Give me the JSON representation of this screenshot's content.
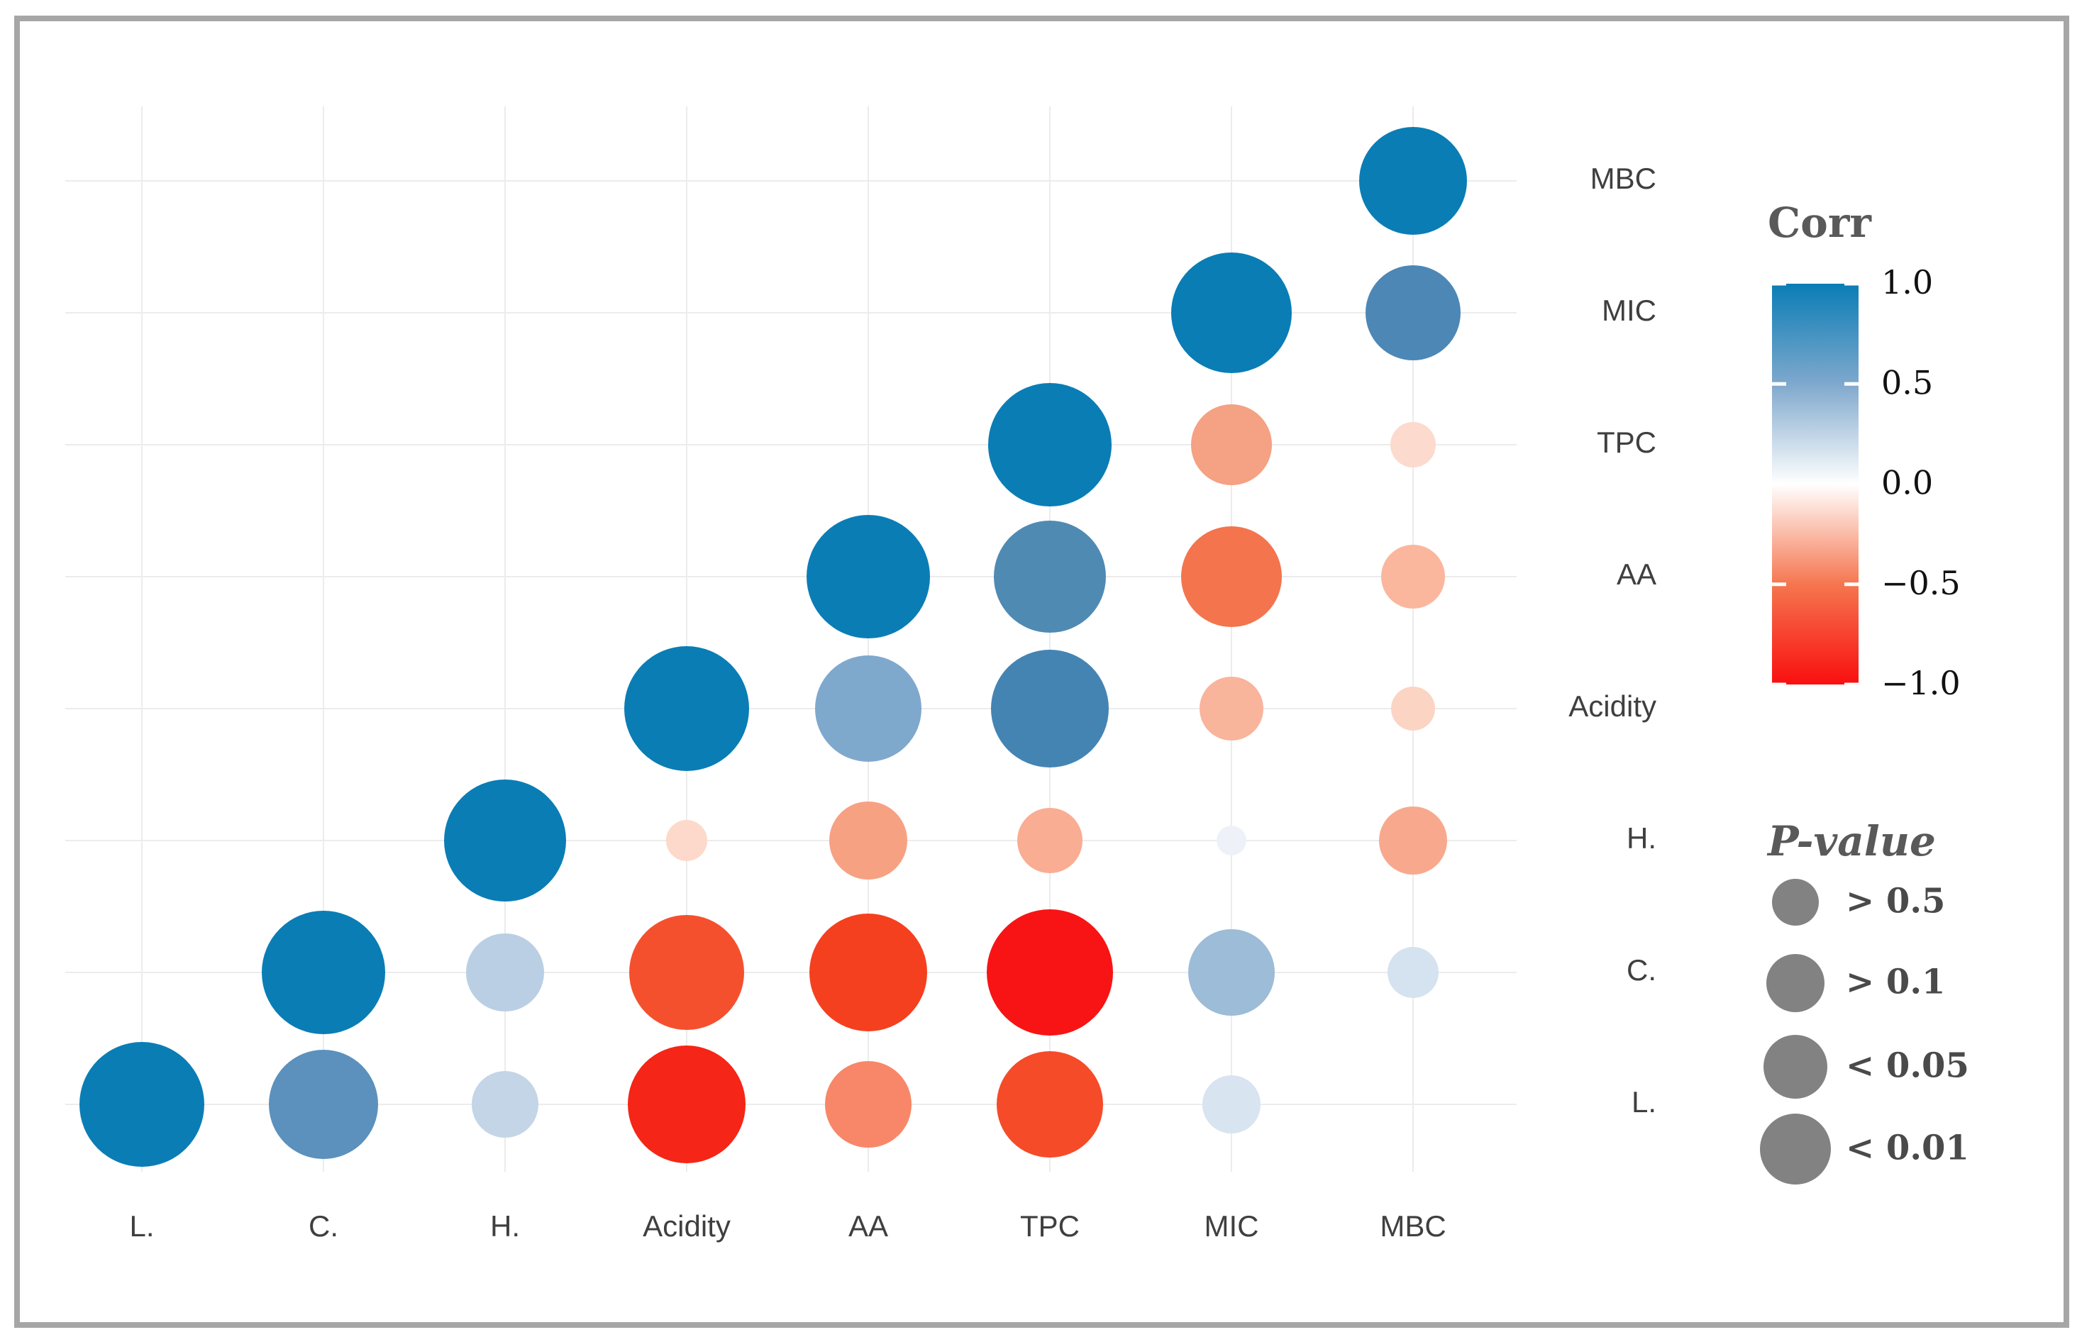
{
  "figure": {
    "background_color": "#ffffff",
    "frame_color": "#a6a6a6"
  },
  "chart_data": {
    "type": "heatmap",
    "subtype": "correlation-bubble-matrix-upper-triangle",
    "title": "",
    "variables": [
      "L.",
      "C.",
      "H.",
      "Acidity",
      "AA",
      "TPC",
      "MIC",
      "MBC"
    ],
    "x_axis_labels": [
      "L.",
      "C.",
      "H.",
      "Acidity",
      "AA",
      "TPC",
      "MIC",
      "MBC"
    ],
    "right_axis_labels_top_to_bottom": [
      "MBC",
      "MIC",
      "TPC",
      "AA",
      "Acidity",
      "H.",
      "C.",
      "L."
    ],
    "grid": true,
    "legend_position": "right",
    "axis_label_color": "#3f3f3f",
    "gridline_color": "#ececec",
    "cells": [
      {
        "row": "L.",
        "col": "L.",
        "corr": 1.0,
        "p": "< 0.01",
        "radius": 88,
        "color": "#0a7db5"
      },
      {
        "row": "C.",
        "col": "C.",
        "corr": 1.0,
        "p": "< 0.01",
        "radius": 87,
        "color": "#0a7db5"
      },
      {
        "row": "H.",
        "col": "H.",
        "corr": 1.0,
        "p": "< 0.01",
        "radius": 86,
        "color": "#0a7db5"
      },
      {
        "row": "Acidity",
        "col": "Acidity",
        "corr": 1.0,
        "p": "< 0.01",
        "radius": 88,
        "color": "#0a7db5"
      },
      {
        "row": "AA",
        "col": "AA",
        "corr": 1.0,
        "p": "< 0.01",
        "radius": 87,
        "color": "#0a7db5"
      },
      {
        "row": "TPC",
        "col": "TPC",
        "corr": 1.0,
        "p": "< 0.01",
        "radius": 87,
        "color": "#0a7db5"
      },
      {
        "row": "MIC",
        "col": "MIC",
        "corr": 1.0,
        "p": "< 0.01",
        "radius": 85,
        "color": "#0a7db5"
      },
      {
        "row": "MBC",
        "col": "MBC",
        "corr": 1.0,
        "p": "< 0.01",
        "radius": 76,
        "color": "#0a7db5"
      },
      {
        "row": "L.",
        "col": "C.",
        "corr": 0.6,
        "p": "< 0.01",
        "radius": 77,
        "color": "#5b91bc"
      },
      {
        "row": "L.",
        "col": "H.",
        "corr": 0.2,
        "p": "> 0.1",
        "radius": 47,
        "color": "#c3d5e7"
      },
      {
        "row": "L.",
        "col": "Acidity",
        "corr": -0.88,
        "p": "< 0.01",
        "radius": 83,
        "color": "#f52517"
      },
      {
        "row": "L.",
        "col": "AA",
        "corr": -0.5,
        "p": "< 0.05",
        "radius": 61,
        "color": "#f78768"
      },
      {
        "row": "L.",
        "col": "TPC",
        "corr": -0.78,
        "p": "< 0.01",
        "radius": 75,
        "color": "#f54b29"
      },
      {
        "row": "L.",
        "col": "MIC",
        "corr": 0.12,
        "p": "> 0.1",
        "radius": 41,
        "color": "#d8e4f0"
      },
      {
        "row": "L.",
        "col": "MBC",
        "corr": 0.0,
        "p": "> 0.5",
        "radius": 0,
        "color": "#ffffff"
      },
      {
        "row": "C.",
        "col": "H.",
        "corr": 0.25,
        "p": "> 0.1",
        "radius": 55,
        "color": "#bacfe4"
      },
      {
        "row": "C.",
        "col": "Acidity",
        "corr": -0.75,
        "p": "< 0.01",
        "radius": 81,
        "color": "#f5502e"
      },
      {
        "row": "C.",
        "col": "AA",
        "corr": -0.8,
        "p": "< 0.01",
        "radius": 83,
        "color": "#f4401f"
      },
      {
        "row": "C.",
        "col": "TPC",
        "corr": -0.95,
        "p": "< 0.01",
        "radius": 89,
        "color": "#f81414"
      },
      {
        "row": "C.",
        "col": "MIC",
        "corr": 0.35,
        "p": "< 0.05",
        "radius": 61,
        "color": "#9cbcd8"
      },
      {
        "row": "C.",
        "col": "MBC",
        "corr": 0.15,
        "p": "> 0.5",
        "radius": 36,
        "color": "#d5e2ef"
      },
      {
        "row": "H.",
        "col": "Acidity",
        "corr": -0.1,
        "p": "> 0.5",
        "radius": 29,
        "color": "#fcd9ca"
      },
      {
        "row": "H.",
        "col": "AA",
        "corr": -0.4,
        "p": "> 0.1",
        "radius": 55,
        "color": "#f7a183"
      },
      {
        "row": "H.",
        "col": "TPC",
        "corr": -0.32,
        "p": "> 0.1",
        "radius": 46,
        "color": "#f9ad92"
      },
      {
        "row": "H.",
        "col": "MIC",
        "corr": 0.05,
        "p": "> 0.5",
        "radius": 21,
        "color": "#eef2f8"
      },
      {
        "row": "H.",
        "col": "MBC",
        "corr": -0.37,
        "p": "> 0.1",
        "radius": 48,
        "color": "#f8a98d"
      },
      {
        "row": "Acidity",
        "col": "AA",
        "corr": 0.45,
        "p": "< 0.01",
        "radius": 75,
        "color": "#7fa8cd"
      },
      {
        "row": "Acidity",
        "col": "TPC",
        "corr": 0.68,
        "p": "< 0.01",
        "radius": 83,
        "color": "#4484b3"
      },
      {
        "row": "Acidity",
        "col": "MIC",
        "corr": -0.28,
        "p": "> 0.1",
        "radius": 45,
        "color": "#f9b49c"
      },
      {
        "row": "Acidity",
        "col": "MBC",
        "corr": -0.15,
        "p": "> 0.5",
        "radius": 31,
        "color": "#fcd4c4"
      },
      {
        "row": "AA",
        "col": "TPC",
        "corr": 0.65,
        "p": "< 0.01",
        "radius": 79,
        "color": "#4f8ab3"
      },
      {
        "row": "AA",
        "col": "MIC",
        "corr": -0.6,
        "p": "< 0.05",
        "radius": 71,
        "color": "#f3744d"
      },
      {
        "row": "AA",
        "col": "MBC",
        "corr": -0.3,
        "p": "> 0.1",
        "radius": 45,
        "color": "#fab79e"
      },
      {
        "row": "TPC",
        "col": "MIC",
        "corr": -0.4,
        "p": "< 0.05",
        "radius": 57,
        "color": "#f5a183"
      },
      {
        "row": "TPC",
        "col": "MBC",
        "corr": -0.1,
        "p": "> 0.5",
        "radius": 32,
        "color": "#fcdacd"
      },
      {
        "row": "MIC",
        "col": "MBC",
        "corr": 0.75,
        "p": "< 0.05",
        "radius": 67,
        "color": "#4d87b5"
      }
    ],
    "colorbar_legend": {
      "title": "Corr",
      "title_color": "#595959",
      "tick_labels": [
        "1.0",
        "0.5",
        "0.0",
        "−0.5",
        "−1.0"
      ],
      "tick_values": [
        1.0,
        0.5,
        0.0,
        -0.5,
        -1.0
      ],
      "range": [
        -1.0,
        1.0
      ],
      "gradient_stops": [
        "#0a7db5",
        "#7fa8cd",
        "#ffffff",
        "#f5764f",
        "#f90f0f"
      ],
      "tick_label_color": "#111111"
    },
    "pvalue_legend": {
      "title": "P-value",
      "title_color": "#595959",
      "circle_color": "#828282",
      "items": [
        {
          "label": "> 0.5",
          "radius": 33
        },
        {
          "label": "> 0.1",
          "radius": 41
        },
        {
          "label": "< 0.05",
          "radius": 45
        },
        {
          "label": "< 0.01",
          "radius": 50
        }
      ],
      "label_color": "#4a4a4a"
    }
  }
}
